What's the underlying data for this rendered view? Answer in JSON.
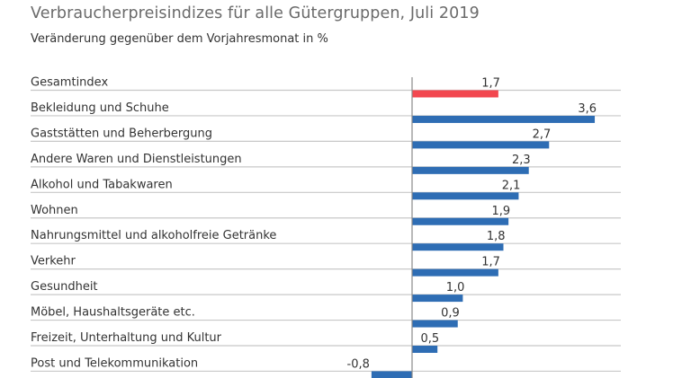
{
  "chart_data": {
    "type": "bar",
    "orientation": "horizontal",
    "title": "Verbraucherpreisindizes für alle Gütergruppen, Juli 2019",
    "subtitle": "Veränderung gegenüber dem Vorjahresmonat in %",
    "xlabel": "",
    "ylabel": "",
    "xlim": [
      -0.8,
      3.6
    ],
    "grid": false,
    "legend": "none",
    "categories": [
      "Gesamtindex",
      "Bekleidung und Schuhe",
      "Gaststätten und Beherbergung",
      "Andere Waren und Dienstleistungen",
      "Alkohol und Tabakwaren",
      "Wohnen",
      "Nahrungsmittel und alkoholfreie Getränke",
      "Verkehr",
      "Gesundheit",
      "Möbel, Haushaltsgeräte etc.",
      "Freizeit, Unterhaltung und Kultur",
      "Post und Telekommunikation"
    ],
    "values": [
      1.7,
      3.6,
      2.7,
      2.3,
      2.1,
      1.9,
      1.8,
      1.7,
      1.0,
      0.9,
      0.5,
      -0.8
    ],
    "value_labels": [
      "1,7",
      "3,6",
      "2,7",
      "2,3",
      "2,1",
      "1,9",
      "1,8",
      "1,7",
      "1,0",
      "0,9",
      "0,5",
      "-0,8"
    ],
    "highlight_index": 0,
    "colors": {
      "highlight": "#f2474f",
      "default": "#2e6db4",
      "axis": "#8a8a8a",
      "separator": "#c8c8c8"
    }
  }
}
